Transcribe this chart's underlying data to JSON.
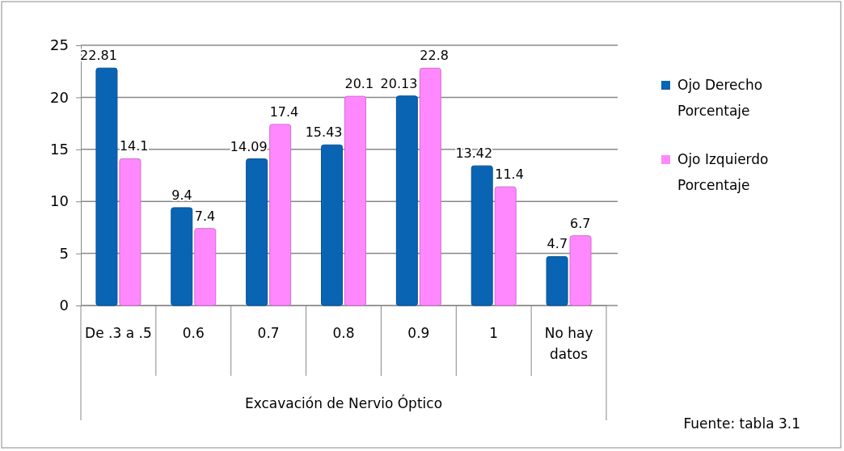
{
  "chart_data": {
    "type": "bar",
    "xlabel": "Excavación de Nervio Óptico",
    "categories": [
      "De .3 a .5",
      "0.6",
      "0.7",
      "0.8",
      "0.9",
      "1",
      "No hay datos"
    ],
    "series": [
      {
        "name": "Ojo Derecho Porcentaje",
        "color": "#0a64b4",
        "values": [
          22.81,
          9.4,
          14.09,
          15.43,
          20.13,
          13.42,
          4.7
        ]
      },
      {
        "name": "Ojo Izquierdo Porcentaje",
        "color": "#ff88ff",
        "values": [
          14.1,
          7.4,
          17.4,
          20.1,
          22.8,
          11.4,
          6.7
        ]
      }
    ],
    "ylim": [
      0,
      25
    ],
    "yticks": [
      0,
      5,
      10,
      15,
      20,
      25
    ],
    "grid": "y",
    "legend": "right",
    "data_labels": true,
    "annotations": [
      "Fuente: tabla 3.1"
    ]
  }
}
